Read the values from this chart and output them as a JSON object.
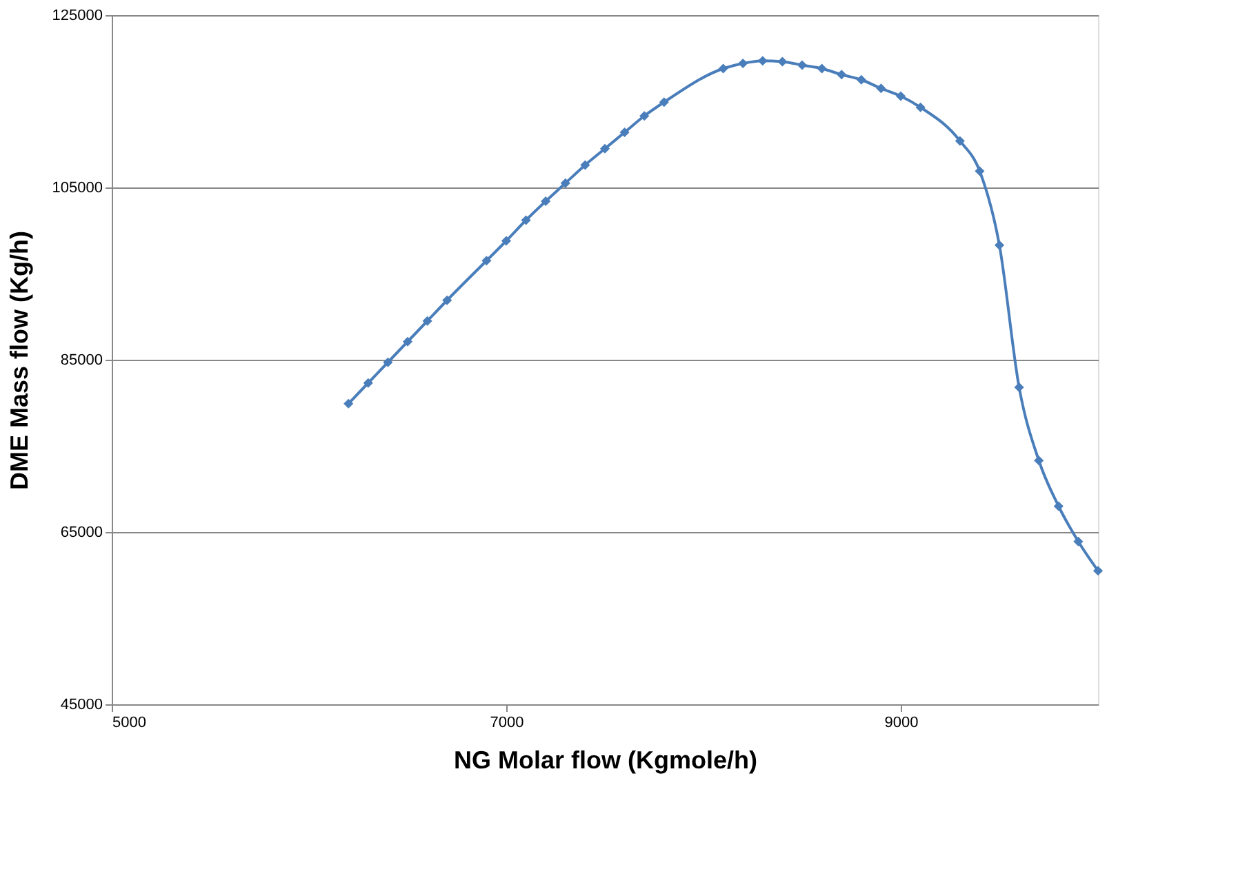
{
  "chart_data": {
    "type": "line",
    "xlabel": "NG Molar flow (Kgmole/h)",
    "ylabel": "DME Mass flow (Kg/h)",
    "x": [
      6200,
      6300,
      6400,
      6500,
      6600,
      6700,
      6900,
      7000,
      7100,
      7200,
      7300,
      7400,
      7500,
      7600,
      7700,
      7800,
      8100,
      8200,
      8300,
      8400,
      8500,
      8600,
      8700,
      8800,
      8900,
      9000,
      9100,
      9300,
      9400,
      9500,
      9600,
      9700,
      9800,
      9900,
      10000
    ],
    "series": [
      {
        "color": "#4a7ebb",
        "values": [
          79900,
          82300,
          84700,
          87100,
          89500,
          91900,
          96500,
          98800,
          101200,
          103400,
          105500,
          107600,
          109500,
          111400,
          113300,
          114900,
          118800,
          119400,
          119700,
          119600,
          119200,
          118800,
          118100,
          117500,
          116500,
          115600,
          114300,
          110400,
          106900,
          98300,
          81800,
          73300,
          68000,
          63900,
          60500
        ]
      }
    ],
    "xlim": [
      5000,
      10000
    ],
    "xticks": [
      5000,
      7000,
      9000
    ],
    "ylim": [
      45000,
      125000
    ],
    "yticks": [
      45000,
      65000,
      85000,
      105000,
      125000
    ],
    "grid": "y",
    "marker": "diamond",
    "line_style": "solid"
  }
}
